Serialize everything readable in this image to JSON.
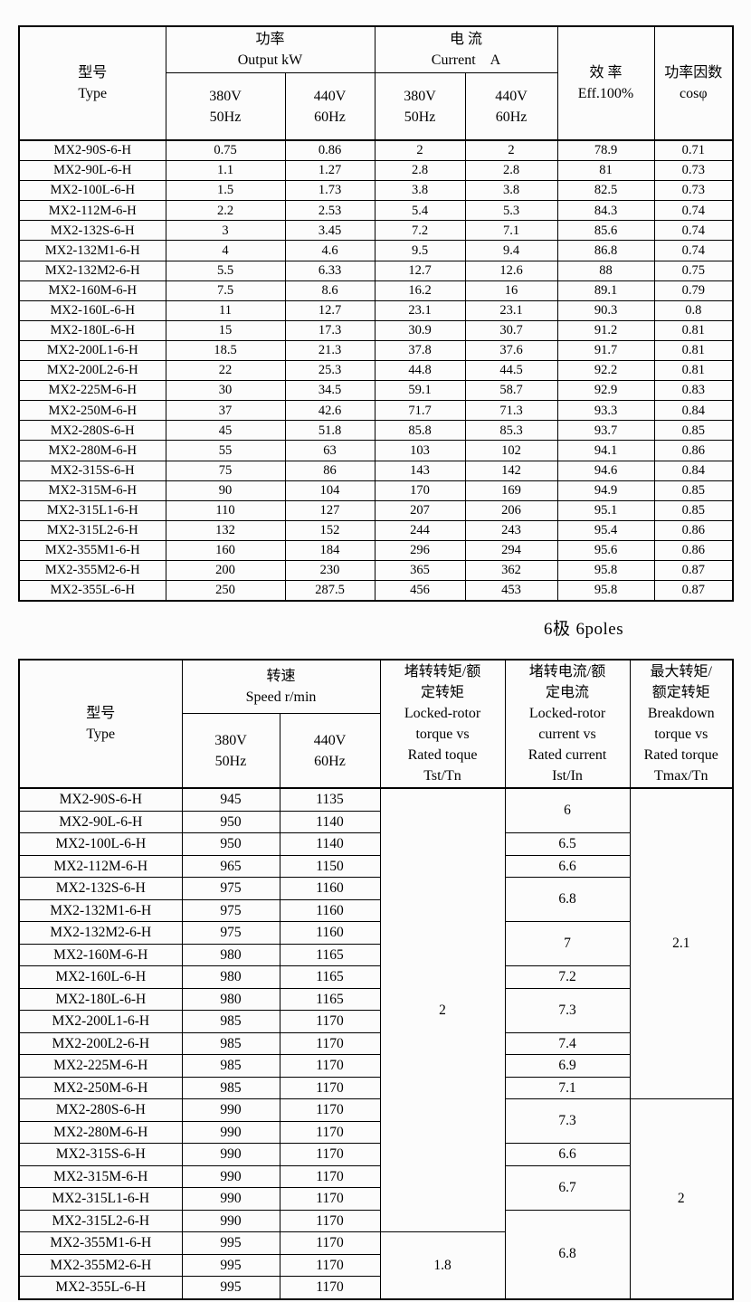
{
  "page": {
    "poles_label_zh": "6极",
    "poles_label_en": "6poles"
  },
  "colors": {
    "background": "#fcfcfc",
    "border": "#000000",
    "text": "#000000"
  },
  "table1": {
    "header": {
      "type": "型号\nType",
      "output": "功率\nOutput  kW",
      "current": "电 流\nCurrent　A",
      "eff": "效 率\nEff.100%",
      "power_factor": "功率因数\ncosφ",
      "v380": "380V\n50Hz",
      "v440": "440V\n60Hz"
    },
    "columns": [
      "type",
      "output_kw_380v_50hz",
      "output_kw_440v_60hz",
      "current_a_380v_50hz",
      "current_a_440v_60hz",
      "eff_percent",
      "cos_phi"
    ],
    "rows": [
      [
        "MX2-90S-6-H",
        "0.75",
        "0.86",
        "2",
        "2",
        "78.9",
        "0.71"
      ],
      [
        "MX2-90L-6-H",
        "1.1",
        "1.27",
        "2.8",
        "2.8",
        "81",
        "0.73"
      ],
      [
        "MX2-100L-6-H",
        "1.5",
        "1.73",
        "3.8",
        "3.8",
        "82.5",
        "0.73"
      ],
      [
        "MX2-112M-6-H",
        "2.2",
        "2.53",
        "5.4",
        "5.3",
        "84.3",
        "0.74"
      ],
      [
        "MX2-132S-6-H",
        "3",
        "3.45",
        "7.2",
        "7.1",
        "85.6",
        "0.74"
      ],
      [
        "MX2-132M1-6-H",
        "4",
        "4.6",
        "9.5",
        "9.4",
        "86.8",
        "0.74"
      ],
      [
        "MX2-132M2-6-H",
        "5.5",
        "6.33",
        "12.7",
        "12.6",
        "88",
        "0.75"
      ],
      [
        "MX2-160M-6-H",
        "7.5",
        "8.6",
        "16.2",
        "16",
        "89.1",
        "0.79"
      ],
      [
        "MX2-160L-6-H",
        "11",
        "12.7",
        "23.1",
        "23.1",
        "90.3",
        "0.8"
      ],
      [
        "MX2-180L-6-H",
        "15",
        "17.3",
        "30.9",
        "30.7",
        "91.2",
        "0.81"
      ],
      [
        "MX2-200L1-6-H",
        "18.5",
        "21.3",
        "37.8",
        "37.6",
        "91.7",
        "0.81"
      ],
      [
        "MX2-200L2-6-H",
        "22",
        "25.3",
        "44.8",
        "44.5",
        "92.2",
        "0.81"
      ],
      [
        "MX2-225M-6-H",
        "30",
        "34.5",
        "59.1",
        "58.7",
        "92.9",
        "0.83"
      ],
      [
        "MX2-250M-6-H",
        "37",
        "42.6",
        "71.7",
        "71.3",
        "93.3",
        "0.84"
      ],
      [
        "MX2-280S-6-H",
        "45",
        "51.8",
        "85.8",
        "85.3",
        "93.7",
        "0.85"
      ],
      [
        "MX2-280M-6-H",
        "55",
        "63",
        "103",
        "102",
        "94.1",
        "0.86"
      ],
      [
        "MX2-315S-6-H",
        "75",
        "86",
        "143",
        "142",
        "94.6",
        "0.84"
      ],
      [
        "MX2-315M-6-H",
        "90",
        "104",
        "170",
        "169",
        "94.9",
        "0.85"
      ],
      [
        "MX2-315L1-6-H",
        "110",
        "127",
        "207",
        "206",
        "95.1",
        "0.85"
      ],
      [
        "MX2-315L2-6-H",
        "132",
        "152",
        "244",
        "243",
        "95.4",
        "0.86"
      ],
      [
        "MX2-355M1-6-H",
        "160",
        "184",
        "296",
        "294",
        "95.6",
        "0.86"
      ],
      [
        "MX2-355M2-6-H",
        "200",
        "230",
        "365",
        "362",
        "95.8",
        "0.87"
      ],
      [
        "MX2-355L-6-H",
        "250",
        "287.5",
        "456",
        "453",
        "95.8",
        "0.87"
      ]
    ]
  },
  "table2": {
    "header": {
      "type": "型号\nType",
      "speed": "转速\nSpeed r/min",
      "v380": "380V\n50Hz",
      "v440": "440V\n60Hz",
      "tst": "堵转转矩/额\n定转矩\nLocked-rotor\ntorque vs\nRated toque\nTst/Tn",
      "ist": "堵转电流/额\n定电流\nLocked-rotor\ncurrent vs\nRated current\nIst/In",
      "tmax": "最大转矩/\n额定转矩\nBreakdown\ntorque vs\nRated torque\nTmax/Tn"
    },
    "columns": [
      "type",
      "speed_380v_50hz",
      "speed_440v_60hz",
      "tst_tn",
      "ist_in",
      "tmax_tn"
    ],
    "rows": [
      [
        "MX2-90S-6-H",
        "945",
        "1135"
      ],
      [
        "MX2-90L-6-H",
        "950",
        "1140"
      ],
      [
        "MX2-100L-6-H",
        "950",
        "1140"
      ],
      [
        "MX2-112M-6-H",
        "965",
        "1150"
      ],
      [
        "MX2-132S-6-H",
        "975",
        "1160"
      ],
      [
        "MX2-132M1-6-H",
        "975",
        "1160"
      ],
      [
        "MX2-132M2-6-H",
        "975",
        "1160"
      ],
      [
        "MX2-160M-6-H",
        "980",
        "1165"
      ],
      [
        "MX2-160L-6-H",
        "980",
        "1165"
      ],
      [
        "MX2-180L-6-H",
        "980",
        "1165"
      ],
      [
        "MX2-200L1-6-H",
        "985",
        "1170"
      ],
      [
        "MX2-200L2-6-H",
        "985",
        "1170"
      ],
      [
        "MX2-225M-6-H",
        "985",
        "1170"
      ],
      [
        "MX2-250M-6-H",
        "985",
        "1170"
      ],
      [
        "MX2-280S-6-H",
        "990",
        "1170"
      ],
      [
        "MX2-280M-6-H",
        "990",
        "1170"
      ],
      [
        "MX2-315S-6-H",
        "990",
        "1170"
      ],
      [
        "MX2-315M-6-H",
        "990",
        "1170"
      ],
      [
        "MX2-315L1-6-H",
        "990",
        "1170"
      ],
      [
        "MX2-315L2-6-H",
        "990",
        "1170"
      ],
      [
        "MX2-355M1-6-H",
        "995",
        "1170"
      ],
      [
        "MX2-355M2-6-H",
        "995",
        "1170"
      ],
      [
        "MX2-355L-6-H",
        "995",
        "1170"
      ]
    ],
    "merged_columns": [
      {
        "name": "tst-tn",
        "cells": [
          {
            "value": "2",
            "rowspan": 20
          },
          {
            "value": "1.8",
            "rowspan": 3
          }
        ]
      },
      {
        "name": "ist-in",
        "cells": [
          {
            "value": "6",
            "rowspan": 2
          },
          {
            "value": "6.5",
            "rowspan": 1
          },
          {
            "value": "6.6",
            "rowspan": 1
          },
          {
            "value": "6.8",
            "rowspan": 2
          },
          {
            "value": "7",
            "rowspan": 2
          },
          {
            "value": "7.2",
            "rowspan": 1
          },
          {
            "value": "7.3",
            "rowspan": 2
          },
          {
            "value": "7.4",
            "rowspan": 1
          },
          {
            "value": "6.9",
            "rowspan": 1
          },
          {
            "value": "7.1",
            "rowspan": 1
          },
          {
            "value": "7.3",
            "rowspan": 2
          },
          {
            "value": "6.6",
            "rowspan": 1
          },
          {
            "value": "6.7",
            "rowspan": 2
          },
          {
            "value": "6.8",
            "rowspan": 4
          }
        ]
      },
      {
        "name": "tmax-tn",
        "cells": [
          {
            "value": "2.1",
            "rowspan": 14
          },
          {
            "value": "2",
            "rowspan": 9
          }
        ]
      }
    ]
  }
}
